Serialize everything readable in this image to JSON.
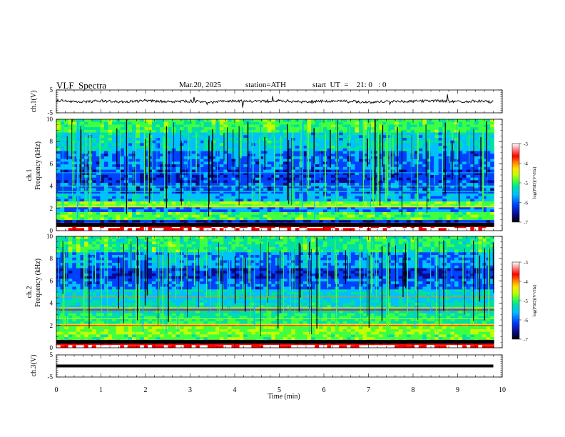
{
  "header": {
    "title": "VLF  Spectra",
    "date": "Mar.20, 2025",
    "station": "station=ATH",
    "start": "start  UT  =    21: 0   : 0"
  },
  "colors": {
    "axis": "#000000",
    "waveform": "#000000",
    "colormap": [
      "#000000",
      "#0a0a8c",
      "#0040ff",
      "#00c0ff",
      "#00e0a0",
      "#40ff40",
      "#c0ff00",
      "#ffe000",
      "#ff8000",
      "#ff0000",
      "#ffffff"
    ]
  },
  "chart_data": [
    {
      "type": "line",
      "panel": "ch.1",
      "ylabel": "ch.1(V)",
      "ylim": [
        -5,
        5
      ],
      "yticks": [
        "5",
        "-5"
      ],
      "x": [
        0,
        0.5,
        1,
        1.5,
        2,
        2.5,
        3,
        3.5,
        4,
        4.5,
        5,
        5.5,
        6,
        6.5,
        7,
        7.5,
        8,
        8.5,
        9,
        9.5,
        9.8
      ],
      "values": [
        0.4,
        -0.3,
        0.2,
        -0.2,
        0.3,
        -0.1,
        0.1,
        -0.3,
        0.2,
        0.0,
        0.3,
        -0.2,
        0.1,
        0.2,
        -0.4,
        0.1,
        0.0,
        0.3,
        -0.1,
        0.2,
        -0.3
      ]
    },
    {
      "type": "heatmap",
      "panel": "ch.1",
      "ylabel": "Frequency  (kHz)",
      "channel_label": "ch.1",
      "ylim": [
        0,
        10
      ],
      "yticks": [
        "0",
        "2",
        "4",
        "6",
        "8",
        "10"
      ],
      "colorbar": {
        "label": "log(PSD)(V²/Hz)",
        "ticks": [
          "-3",
          "-4",
          "-5",
          "-6",
          "-7"
        ],
        "range": [
          -7,
          -3
        ]
      }
    },
    {
      "type": "heatmap",
      "panel": "ch.2",
      "ylabel": "Frequency  (kHz)",
      "channel_label": "ch.2",
      "ylim": [
        0,
        10
      ],
      "yticks": [
        "0",
        "2",
        "4",
        "6",
        "8",
        "10"
      ],
      "colorbar": {
        "label": "log(PSD)(V²/Hz)",
        "ticks": [
          "-3",
          "-4",
          "-5",
          "-6",
          "-7"
        ],
        "range": [
          -7,
          -3
        ]
      }
    },
    {
      "type": "line",
      "panel": "ch.3",
      "ylabel": "ch.3(V)",
      "ylim": [
        -5,
        5
      ],
      "yticks": [
        "5",
        "-5"
      ],
      "x": [
        0,
        9.8
      ],
      "values": [
        0,
        0
      ]
    }
  ],
  "xaxis": {
    "label": "Time  (min)",
    "xlim": [
      0,
      10
    ],
    "ticks": [
      "0",
      "1",
      "2",
      "3",
      "4",
      "5",
      "6",
      "7",
      "8",
      "9",
      "10"
    ]
  }
}
